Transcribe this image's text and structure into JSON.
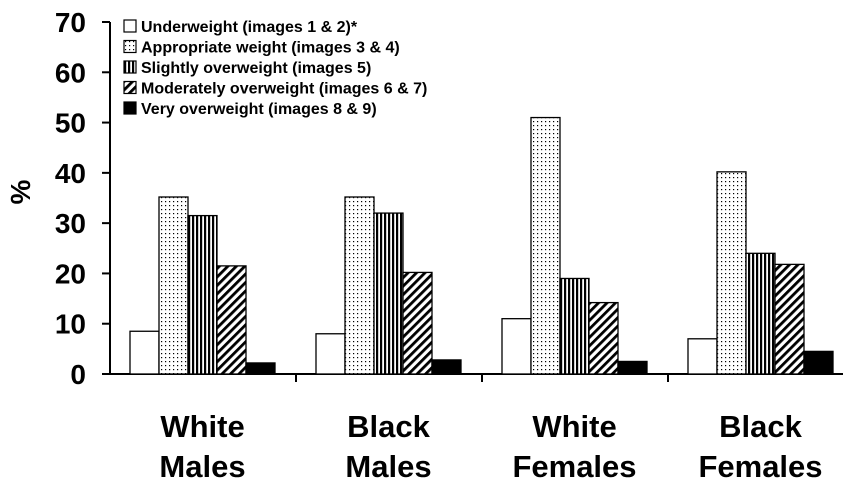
{
  "chart_data": {
    "type": "bar",
    "title": "",
    "xlabel": "",
    "ylabel": "%",
    "ylim": [
      0,
      70
    ],
    "yticks": [
      "0",
      "10",
      "20",
      "30",
      "40",
      "50",
      "60",
      "70"
    ],
    "legend_position": "top-left",
    "grid": false,
    "categories": [
      [
        "White",
        "Males"
      ],
      [
        "Black",
        "Males"
      ],
      [
        "White",
        "Females"
      ],
      [
        "Black",
        "Females"
      ]
    ],
    "series": [
      {
        "name": "Underweight (images 1 & 2)*",
        "pattern": "blank",
        "values": [
          8.5,
          8.0,
          11.0,
          7.0
        ]
      },
      {
        "name": "Appropriate weight (images 3 & 4)",
        "pattern": "dots",
        "values": [
          35.2,
          35.2,
          51.0,
          40.2
        ]
      },
      {
        "name": "Slightly overweight (images 5)",
        "pattern": "vertical",
        "values": [
          31.5,
          32.0,
          19.0,
          24.0
        ]
      },
      {
        "name": "Moderately overweight (images 6 & 7)",
        "pattern": "diagonal",
        "values": [
          21.5,
          20.2,
          14.2,
          21.8
        ]
      },
      {
        "name": "Very overweight (images 8 & 9)",
        "pattern": "solid",
        "values": [
          2.2,
          2.8,
          2.5,
          4.5
        ]
      }
    ]
  }
}
